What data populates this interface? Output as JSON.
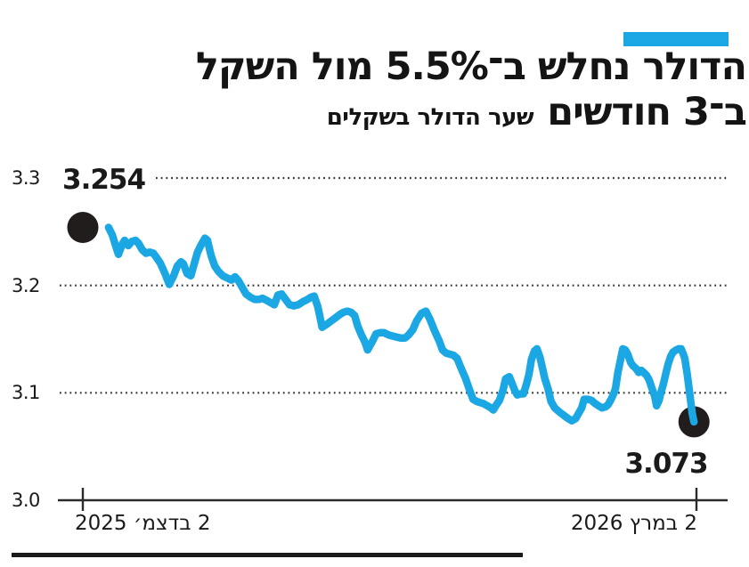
{
  "page": {
    "background": "#ffffff",
    "accent_color": "#1ba7e4",
    "text_color": "#141414"
  },
  "title": {
    "line1": "הדולר נחלש ב־5.5% מול השקל",
    "line2_big": "ב־3 חודשים",
    "subtitle": "שער הדולר בשקלים"
  },
  "chart_data": {
    "type": "line",
    "title": "הדולר נחלש ב־5.5% מול השקל ב־3 חודשים",
    "subtitle": "שער הדולר בשקלים",
    "unit": "shekels per dollar",
    "ylim": [
      3.0,
      3.3
    ],
    "yticks": [
      3.3,
      3.2,
      3.1,
      3.0
    ],
    "grid": "dotted horizontal, x axis solid with end ticks",
    "legend": "none",
    "line_color": "#1ba7e4",
    "marker_color": "#211d1d",
    "x_axis": {
      "start_label": "2 בדצמ׳ 2025",
      "end_label": "2 במרץ 2026"
    },
    "start_point": {
      "t": 0.0,
      "value": 3.254,
      "label": "3.254"
    },
    "end_point": {
      "t": 0.996,
      "value": 3.073,
      "label": "3.073"
    },
    "series": [
      {
        "name": "שער הדולר בשקלים",
        "points": [
          [
            0.042,
            3.254
          ],
          [
            0.048,
            3.247
          ],
          [
            0.054,
            3.236
          ],
          [
            0.058,
            3.229
          ],
          [
            0.064,
            3.238
          ],
          [
            0.068,
            3.242
          ],
          [
            0.074,
            3.237
          ],
          [
            0.08,
            3.241
          ],
          [
            0.086,
            3.242
          ],
          [
            0.091,
            3.239
          ],
          [
            0.097,
            3.233
          ],
          [
            0.103,
            3.23
          ],
          [
            0.109,
            3.231
          ],
          [
            0.115,
            3.23
          ],
          [
            0.12,
            3.226
          ],
          [
            0.126,
            3.221
          ],
          [
            0.134,
            3.211
          ],
          [
            0.141,
            3.201
          ],
          [
            0.148,
            3.209
          ],
          [
            0.154,
            3.218
          ],
          [
            0.16,
            3.222
          ],
          [
            0.164,
            3.22
          ],
          [
            0.17,
            3.211
          ],
          [
            0.176,
            3.209
          ],
          [
            0.181,
            3.219
          ],
          [
            0.187,
            3.231
          ],
          [
            0.193,
            3.238
          ],
          [
            0.199,
            3.244
          ],
          [
            0.203,
            3.242
          ],
          [
            0.209,
            3.228
          ],
          [
            0.215,
            3.218
          ],
          [
            0.221,
            3.213
          ],
          [
            0.228,
            3.209
          ],
          [
            0.235,
            3.207
          ],
          [
            0.242,
            3.205
          ],
          [
            0.248,
            3.208
          ],
          [
            0.254,
            3.204
          ],
          [
            0.26,
            3.198
          ],
          [
            0.266,
            3.192
          ],
          [
            0.273,
            3.189
          ],
          [
            0.28,
            3.187
          ],
          [
            0.287,
            3.187
          ],
          [
            0.293,
            3.188
          ],
          [
            0.3,
            3.186
          ],
          [
            0.306,
            3.184
          ],
          [
            0.312,
            3.182
          ],
          [
            0.318,
            3.191
          ],
          [
            0.324,
            3.192
          ],
          [
            0.329,
            3.188
          ],
          [
            0.337,
            3.182
          ],
          [
            0.344,
            3.181
          ],
          [
            0.351,
            3.182
          ],
          [
            0.359,
            3.185
          ],
          [
            0.366,
            3.187
          ],
          [
            0.372,
            3.189
          ],
          [
            0.377,
            3.19
          ],
          [
            0.383,
            3.18
          ],
          [
            0.39,
            3.161
          ],
          [
            0.398,
            3.164
          ],
          [
            0.405,
            3.167
          ],
          [
            0.412,
            3.17
          ],
          [
            0.419,
            3.173
          ],
          [
            0.425,
            3.175
          ],
          [
            0.431,
            3.176
          ],
          [
            0.437,
            3.175
          ],
          [
            0.443,
            3.172
          ],
          [
            0.448,
            3.162
          ],
          [
            0.454,
            3.154
          ],
          [
            0.46,
            3.147
          ],
          [
            0.464,
            3.14
          ],
          [
            0.472,
            3.148
          ],
          [
            0.478,
            3.155
          ],
          [
            0.485,
            3.156
          ],
          [
            0.491,
            3.156
          ],
          [
            0.498,
            3.154
          ],
          [
            0.504,
            3.153
          ],
          [
            0.511,
            3.152
          ],
          [
            0.518,
            3.151
          ],
          [
            0.525,
            3.151
          ],
          [
            0.531,
            3.154
          ],
          [
            0.538,
            3.159
          ],
          [
            0.544,
            3.167
          ],
          [
            0.552,
            3.174
          ],
          [
            0.559,
            3.176
          ],
          [
            0.566,
            3.168
          ],
          [
            0.573,
            3.158
          ],
          [
            0.581,
            3.148
          ],
          [
            0.586,
            3.14
          ],
          [
            0.592,
            3.137
          ],
          [
            0.598,
            3.136
          ],
          [
            0.604,
            3.135
          ],
          [
            0.61,
            3.132
          ],
          [
            0.615,
            3.125
          ],
          [
            0.624,
            3.113
          ],
          [
            0.63,
            3.103
          ],
          [
            0.636,
            3.094
          ],
          [
            0.642,
            3.092
          ],
          [
            0.647,
            3.091
          ],
          [
            0.653,
            3.09
          ],
          [
            0.659,
            3.088
          ],
          [
            0.665,
            3.086
          ],
          [
            0.669,
            3.084
          ],
          [
            0.673,
            3.088
          ],
          [
            0.679,
            3.093
          ],
          [
            0.685,
            3.103
          ],
          [
            0.689,
            3.113
          ],
          [
            0.695,
            3.115
          ],
          [
            0.7,
            3.108
          ],
          [
            0.704,
            3.102
          ],
          [
            0.708,
            3.098
          ],
          [
            0.713,
            3.099
          ],
          [
            0.718,
            3.099
          ],
          [
            0.723,
            3.108
          ],
          [
            0.727,
            3.117
          ],
          [
            0.731,
            3.131
          ],
          [
            0.736,
            3.139
          ],
          [
            0.74,
            3.141
          ],
          [
            0.745,
            3.133
          ],
          [
            0.749,
            3.123
          ],
          [
            0.753,
            3.113
          ],
          [
            0.758,
            3.104
          ],
          [
            0.763,
            3.092
          ],
          [
            0.769,
            3.086
          ],
          [
            0.777,
            3.082
          ],
          [
            0.784,
            3.079
          ],
          [
            0.791,
            3.076
          ],
          [
            0.797,
            3.074
          ],
          [
            0.803,
            3.076
          ],
          [
            0.808,
            3.081
          ],
          [
            0.813,
            3.086
          ],
          [
            0.817,
            3.094
          ],
          [
            0.823,
            3.094
          ],
          [
            0.829,
            3.093
          ],
          [
            0.835,
            3.09
          ],
          [
            0.84,
            3.088
          ],
          [
            0.846,
            3.086
          ],
          [
            0.852,
            3.087
          ],
          [
            0.856,
            3.089
          ],
          [
            0.861,
            3.094
          ],
          [
            0.865,
            3.099
          ],
          [
            0.868,
            3.104
          ],
          [
            0.872,
            3.119
          ],
          [
            0.877,
            3.133
          ],
          [
            0.88,
            3.141
          ],
          [
            0.884,
            3.14
          ],
          [
            0.888,
            3.136
          ],
          [
            0.893,
            3.128
          ],
          [
            0.897,
            3.125
          ],
          [
            0.901,
            3.123
          ],
          [
            0.906,
            3.119
          ],
          [
            0.91,
            3.121
          ],
          [
            0.914,
            3.119
          ],
          [
            0.919,
            3.116
          ],
          [
            0.923,
            3.112
          ],
          [
            0.927,
            3.105
          ],
          [
            0.932,
            3.097
          ],
          [
            0.935,
            3.088
          ],
          [
            0.939,
            3.093
          ],
          [
            0.942,
            3.1
          ],
          [
            0.946,
            3.108
          ],
          [
            0.951,
            3.12
          ],
          [
            0.954,
            3.127
          ],
          [
            0.958,
            3.134
          ],
          [
            0.962,
            3.138
          ],
          [
            0.967,
            3.14
          ],
          [
            0.971,
            3.141
          ],
          [
            0.975,
            3.141
          ],
          [
            0.978,
            3.137
          ],
          [
            0.981,
            3.132
          ],
          [
            0.985,
            3.117
          ],
          [
            0.99,
            3.095
          ],
          [
            0.993,
            3.081
          ],
          [
            0.996,
            3.073
          ]
        ]
      }
    ]
  }
}
